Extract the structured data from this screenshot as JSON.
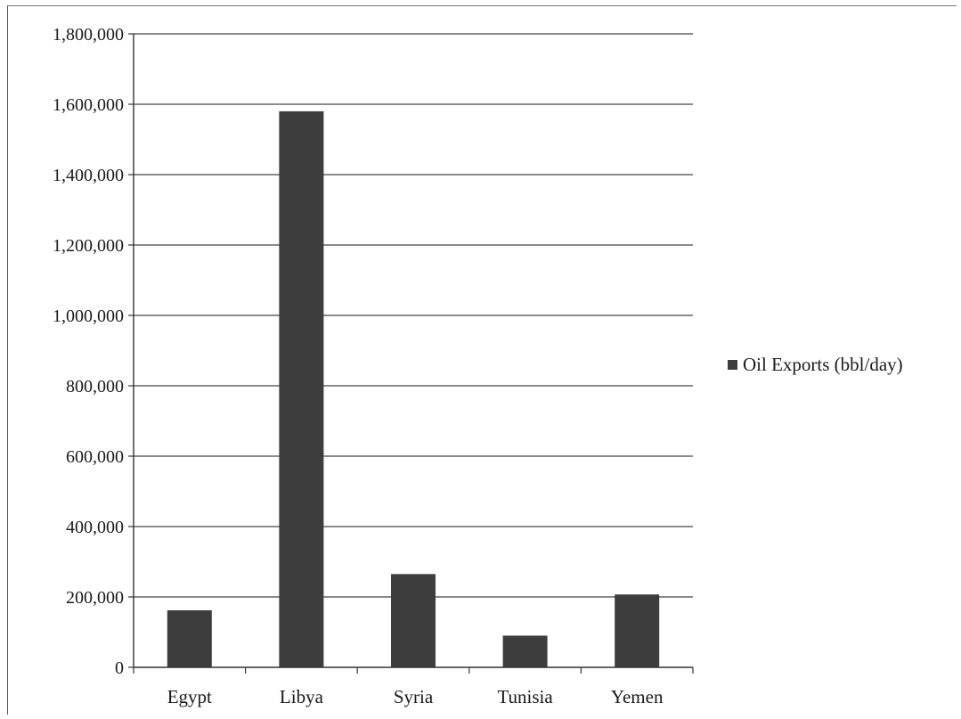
{
  "chart_data": {
    "type": "bar",
    "categories": [
      "Egypt",
      "Libya",
      "Syria",
      "Tunisia",
      "Yemen"
    ],
    "series": [
      {
        "name": "Oil Exports (bbl/day)",
        "values": [
          162000,
          1580000,
          265000,
          90000,
          207000
        ],
        "color": "#3d3d3d"
      }
    ],
    "yticks": [
      "0",
      "200,000",
      "400,000",
      "600,000",
      "800,000",
      "1,000,000",
      "1,200,000",
      "1,400,000",
      "1,600,000",
      "1,800,000"
    ],
    "ylim": [
      0,
      1800000
    ],
    "grid": true,
    "legend_position": "right"
  }
}
